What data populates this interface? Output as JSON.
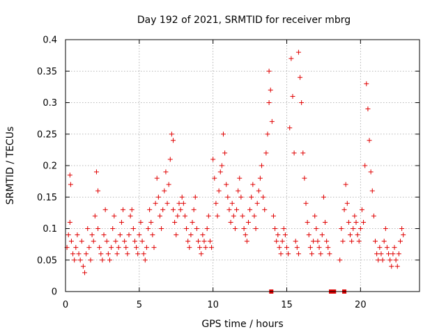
{
  "chart_data": {
    "type": "scatter",
    "title": "Day 192 of 2021, SRMTID for receiver mbrg",
    "xlabel": "GPS time / hours",
    "ylabel": "SRMTID / TECUs",
    "xlim": [
      0,
      24
    ],
    "ylim": [
      0,
      0.4
    ],
    "xticks": [
      "0",
      "5",
      "10",
      "15",
      "20"
    ],
    "yticks": [
      "0",
      "0.05",
      "0.1",
      "0.15",
      "0.2",
      "0.25",
      "0.3",
      "0.35",
      "0.4"
    ],
    "grid": true,
    "marker": "+",
    "color": "#e00000",
    "series": [
      {
        "name": "SRMTID",
        "x": [
          0.1,
          0.2,
          0.3,
          0.3,
          0.35,
          0.4,
          0.5,
          0.6,
          0.7,
          0.8,
          0.9,
          1.0,
          1.1,
          1.2,
          1.3,
          1.4,
          1.5,
          1.6,
          1.7,
          1.8,
          1.9,
          2.0,
          2.1,
          2.2,
          2.2,
          2.3,
          2.4,
          2.5,
          2.6,
          2.7,
          2.8,
          2.9,
          3.0,
          3.1,
          3.2,
          3.3,
          3.4,
          3.5,
          3.6,
          3.7,
          3.8,
          3.9,
          4.0,
          4.1,
          4.2,
          4.3,
          4.4,
          4.5,
          4.6,
          4.7,
          4.8,
          4.9,
          5.0,
          5.1,
          5.2,
          5.3,
          5.4,
          5.5,
          5.6,
          5.7,
          5.8,
          5.9,
          6.0,
          6.1,
          6.2,
          6.3,
          6.4,
          6.5,
          6.6,
          6.7,
          6.8,
          6.9,
          7.0,
          7.1,
          7.2,
          7.3,
          7.3,
          7.4,
          7.5,
          7.6,
          7.7,
          7.8,
          7.9,
          8.0,
          8.1,
          8.2,
          8.3,
          8.4,
          8.5,
          8.6,
          8.7,
          8.8,
          8.9,
          9.0,
          9.1,
          9.2,
          9.3,
          9.4,
          9.5,
          9.6,
          9.7,
          9.8,
          9.9,
          10.0,
          10.1,
          10.2,
          10.3,
          10.4,
          10.5,
          10.6,
          10.7,
          10.8,
          10.9,
          11.0,
          11.1,
          11.2,
          11.3,
          11.4,
          11.5,
          11.6,
          11.7,
          11.8,
          11.9,
          12.0,
          12.1,
          12.2,
          12.3,
          12.4,
          12.5,
          12.6,
          12.7,
          12.8,
          12.9,
          13.0,
          13.1,
          13.2,
          13.3,
          13.4,
          13.5,
          13.6,
          13.7,
          13.8,
          13.8,
          13.9,
          14.0,
          14.1,
          14.2,
          14.3,
          14.4,
          14.5,
          14.6,
          14.7,
          14.8,
          14.9,
          15.0,
          15.1,
          15.2,
          15.3,
          15.4,
          15.5,
          15.6,
          15.7,
          15.8,
          15.8,
          15.9,
          16.0,
          16.1,
          16.2,
          16.3,
          16.4,
          16.5,
          16.6,
          16.7,
          16.8,
          16.9,
          17.0,
          17.1,
          17.2,
          17.3,
          17.4,
          17.5,
          17.6,
          17.7,
          17.8,
          17.9,
          18.6,
          18.7,
          18.8,
          18.9,
          19.0,
          19.1,
          19.2,
          19.3,
          19.4,
          19.5,
          19.6,
          19.7,
          19.8,
          19.9,
          20.0,
          20.1,
          20.2,
          20.3,
          20.4,
          20.5,
          20.6,
          20.7,
          20.8,
          20.9,
          21.0,
          21.1,
          21.2,
          21.3,
          21.4,
          21.5,
          21.6,
          21.7,
          21.8,
          21.9,
          22.0,
          22.1,
          22.2,
          22.3,
          22.4,
          22.5,
          22.6,
          22.7,
          22.8,
          22.9
        ],
        "y": [
          0.07,
          0.09,
          0.11,
          0.185,
          0.17,
          0.08,
          0.06,
          0.05,
          0.07,
          0.09,
          0.06,
          0.05,
          0.08,
          0.04,
          0.03,
          0.06,
          0.1,
          0.07,
          0.05,
          0.09,
          0.08,
          0.12,
          0.19,
          0.16,
          0.1,
          0.07,
          0.06,
          0.05,
          0.09,
          0.13,
          0.08,
          0.06,
          0.05,
          0.07,
          0.1,
          0.12,
          0.08,
          0.06,
          0.07,
          0.09,
          0.11,
          0.13,
          0.08,
          0.07,
          0.06,
          0.09,
          0.12,
          0.13,
          0.1,
          0.08,
          0.07,
          0.06,
          0.09,
          0.11,
          0.08,
          0.06,
          0.05,
          0.07,
          0.1,
          0.13,
          0.11,
          0.09,
          0.07,
          0.14,
          0.18,
          0.15,
          0.12,
          0.1,
          0.13,
          0.16,
          0.19,
          0.14,
          0.17,
          0.21,
          0.25,
          0.24,
          0.13,
          0.11,
          0.09,
          0.12,
          0.14,
          0.13,
          0.15,
          0.14,
          0.12,
          0.1,
          0.08,
          0.07,
          0.09,
          0.11,
          0.13,
          0.15,
          0.1,
          0.08,
          0.07,
          0.06,
          0.09,
          0.08,
          0.07,
          0.1,
          0.12,
          0.08,
          0.07,
          0.21,
          0.18,
          0.14,
          0.12,
          0.16,
          0.19,
          0.2,
          0.25,
          0.22,
          0.17,
          0.15,
          0.13,
          0.11,
          0.14,
          0.12,
          0.1,
          0.13,
          0.16,
          0.18,
          0.15,
          0.12,
          0.1,
          0.09,
          0.08,
          0.11,
          0.13,
          0.15,
          0.17,
          0.12,
          0.1,
          0.14,
          0.16,
          0.18,
          0.2,
          0.15,
          0.13,
          0.22,
          0.25,
          0.3,
          0.35,
          0.32,
          0.27,
          0.12,
          0.1,
          0.08,
          0.09,
          0.07,
          0.06,
          0.08,
          0.1,
          0.09,
          0.07,
          0.06,
          0.26,
          0.37,
          0.31,
          0.22,
          0.08,
          0.07,
          0.06,
          0.38,
          0.34,
          0.3,
          0.22,
          0.18,
          0.14,
          0.11,
          0.09,
          0.07,
          0.06,
          0.08,
          0.12,
          0.1,
          0.08,
          0.07,
          0.06,
          0.09,
          0.15,
          0.11,
          0.08,
          0.07,
          0.06,
          0.05,
          0.1,
          0.08,
          0.13,
          0.17,
          0.14,
          0.11,
          0.09,
          0.08,
          0.1,
          0.12,
          0.11,
          0.09,
          0.08,
          0.1,
          0.13,
          0.11,
          0.2,
          0.33,
          0.29,
          0.24,
          0.19,
          0.16,
          0.12,
          0.08,
          0.06,
          0.05,
          0.07,
          0.06,
          0.05,
          0.08,
          0.1,
          0.07,
          0.06,
          0.05,
          0.04,
          0.06,
          0.07,
          0.05,
          0.04,
          0.06,
          0.08,
          0.1,
          0.09
        ]
      }
    ],
    "gaps": [
      {
        "x": 13.95
      },
      {
        "x": 18.0
      },
      {
        "x": 18.2
      },
      {
        "x": 18.9
      }
    ]
  }
}
